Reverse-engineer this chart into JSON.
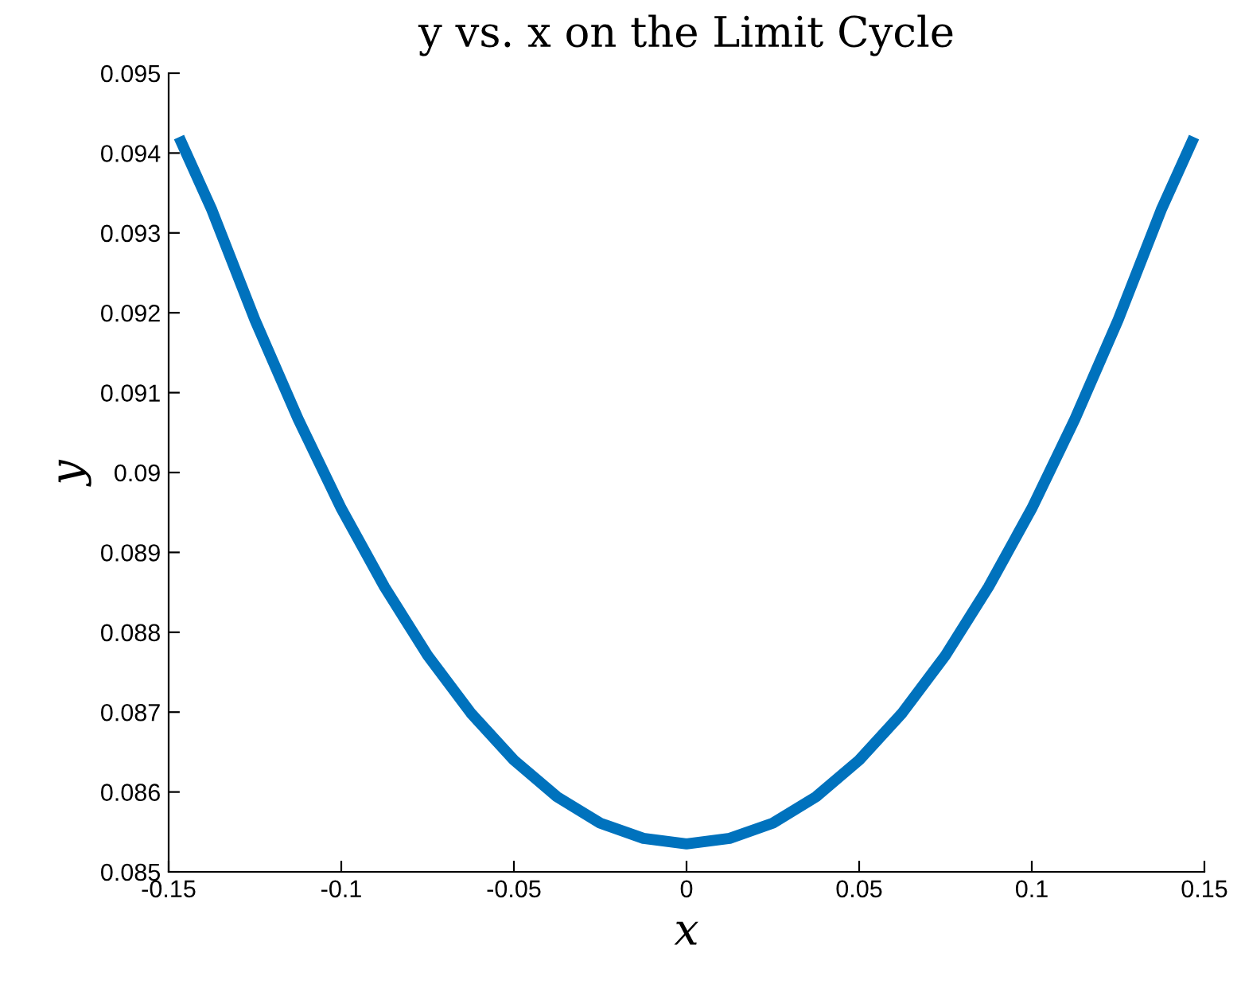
{
  "chart_data": {
    "type": "line",
    "title": "y vs. x on the Limit Cycle",
    "xlabel": "x",
    "ylabel": "y",
    "series": [
      {
        "color": "#0072bd",
        "x": [
          -0.147,
          -0.1375,
          -0.125,
          -0.1125,
          -0.1,
          -0.0875,
          -0.075,
          -0.0625,
          -0.05,
          -0.0375,
          -0.025,
          -0.0125,
          0,
          0.0125,
          0.025,
          0.0375,
          0.05,
          0.0625,
          0.075,
          0.0875,
          0.1,
          0.1125,
          0.125,
          0.1375,
          0.147
        ],
        "values": [
          0.0942,
          0.09329,
          0.09191,
          0.09067,
          0.08955,
          0.08857,
          0.08771,
          0.08699,
          0.0864,
          0.08594,
          0.08561,
          0.08542,
          0.08535,
          0.08542,
          0.08561,
          0.08594,
          0.0864,
          0.08699,
          0.08771,
          0.08857,
          0.08955,
          0.09067,
          0.09191,
          0.09329,
          0.0942
        ]
      }
    ],
    "xlim": [
      -0.15,
      0.15
    ],
    "xticks": [
      -0.15,
      -0.1,
      -0.05,
      0,
      0.05,
      0.1,
      0.15
    ],
    "ylim": [
      0.085,
      0.095
    ],
    "yticks": [
      0.085,
      0.086,
      0.087,
      0.088,
      0.089,
      0.09,
      0.091,
      0.092,
      0.093,
      0.094,
      0.095
    ],
    "grid": false,
    "marker": "none",
    "line_style": "solid"
  }
}
